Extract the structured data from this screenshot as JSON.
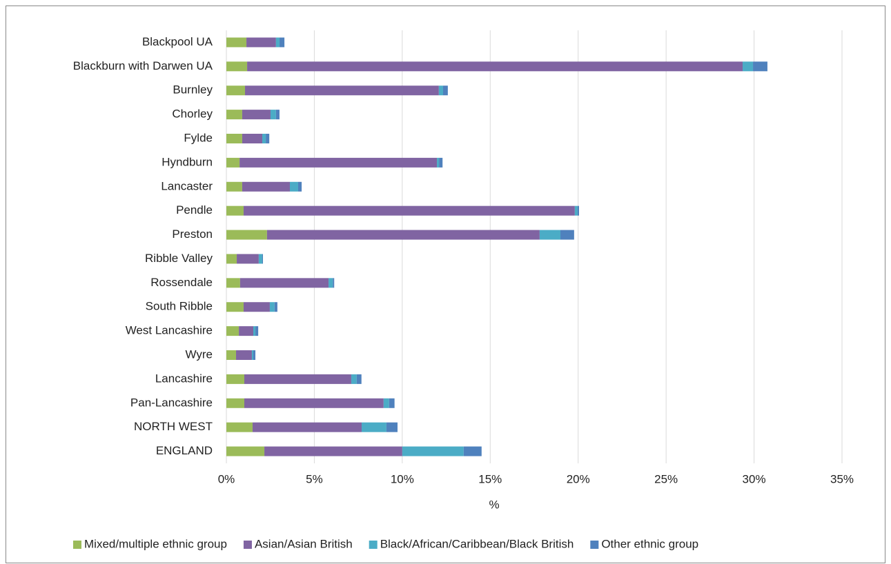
{
  "chart_data": {
    "type": "stacked-barh",
    "categories": [
      "Blackpool UA",
      "Blackburn with Darwen UA",
      "Burnley",
      "Chorley",
      "Fylde",
      "Hyndburn",
      "Lancaster",
      "Pendle",
      "Preston",
      "Ribble Valley",
      "Rossendale",
      "South Ribble",
      "West Lancashire",
      "Wyre",
      "Lancashire",
      "Pan-Lancashire",
      "NORTH WEST",
      "ENGLAND"
    ],
    "series": [
      {
        "name": "Mixed/multiple ethnic group",
        "color": "#9bbb59",
        "values": [
          1.14,
          1.18,
          1.06,
          0.9,
          0.9,
          0.75,
          0.9,
          0.98,
          2.31,
          0.59,
          0.78,
          0.98,
          0.71,
          0.55,
          1.02,
          1.02,
          1.49,
          2.16
        ]
      },
      {
        "name": "Asian/Asian British",
        "color": "#8064a2",
        "values": [
          1.68,
          28.17,
          11.02,
          1.61,
          1.14,
          11.22,
          2.71,
          18.83,
          15.5,
          1.25,
          5.03,
          1.49,
          0.82,
          0.9,
          6.08,
          7.92,
          6.2,
          7.84
        ]
      },
      {
        "name": "Black/African/Caribbean/Black British",
        "color": "#4bacc6",
        "values": [
          0.2,
          0.59,
          0.24,
          0.31,
          0.2,
          0.12,
          0.47,
          0.16,
          1.18,
          0.2,
          0.24,
          0.27,
          0.12,
          0.08,
          0.31,
          0.31,
          1.41,
          3.49
        ]
      },
      {
        "name": "Other ethnic group",
        "color": "#4f81bd",
        "values": [
          0.28,
          0.82,
          0.27,
          0.2,
          0.2,
          0.2,
          0.2,
          0.08,
          0.78,
          0.04,
          0.08,
          0.16,
          0.16,
          0.12,
          0.27,
          0.31,
          0.63,
          1.02
        ]
      }
    ],
    "x_label": "%",
    "xlim": [
      0,
      35
    ],
    "xticks": [
      {
        "value": 0,
        "label": "0%"
      },
      {
        "value": 5,
        "label": "5%"
      },
      {
        "value": 10,
        "label": "10%"
      },
      {
        "value": 15,
        "label": "15%"
      },
      {
        "value": 20,
        "label": "20%"
      },
      {
        "value": 25,
        "label": "25%"
      },
      {
        "value": 30,
        "label": "30%"
      },
      {
        "value": 35,
        "label": "35%"
      }
    ],
    "grid": true,
    "legend": "bottom"
  }
}
